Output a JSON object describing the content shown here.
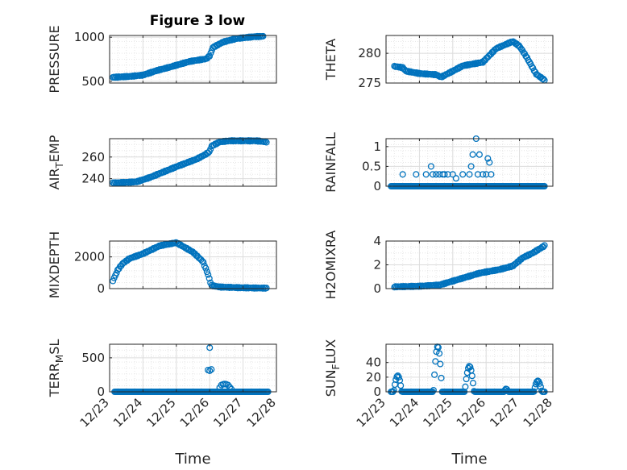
{
  "figure_title": "Figure 3 low",
  "colors": {
    "marker": "#0072BD",
    "axes": "#262626",
    "grid": "#dcdcdc"
  },
  "chart_data": [
    {
      "type": "scatter",
      "title": "Figure 3 low",
      "xlabel": "",
      "ylabel": "PRESSURE",
      "xlim": [
        0,
        5
      ],
      "ylim": [
        480,
        1020
      ],
      "yticks": [
        500,
        1000
      ],
      "ytick_labels": [
        "500",
        "1000"
      ],
      "xticks": [
        0,
        1,
        2,
        3,
        4,
        5
      ],
      "xtick_labels": [],
      "grid": true,
      "anchors": [
        [
          0.1,
          545
        ],
        [
          0.6,
          555
        ],
        [
          1.0,
          570
        ],
        [
          1.4,
          620
        ],
        [
          1.8,
          660
        ],
        [
          2.4,
          725
        ],
        [
          2.9,
          755
        ],
        [
          3.0,
          790
        ],
        [
          3.1,
          885
        ],
        [
          3.4,
          945
        ],
        [
          3.8,
          985
        ],
        [
          4.3,
          1005
        ],
        [
          4.6,
          1010
        ]
      ]
    },
    {
      "type": "scatter",
      "title": "",
      "xlabel": "",
      "ylabel": "THETA",
      "xlim": [
        0,
        5
      ],
      "ylim": [
        275,
        283
      ],
      "yticks": [
        275,
        280
      ],
      "ytick_labels": [
        "275",
        "280"
      ],
      "xticks": [
        0,
        1,
        2,
        3,
        4,
        5
      ],
      "xtick_labels": [],
      "grid": true,
      "anchors": [
        [
          0.25,
          277.8
        ],
        [
          0.5,
          277.6
        ],
        [
          0.6,
          277.0
        ],
        [
          1.0,
          276.6
        ],
        [
          1.5,
          276.4
        ],
        [
          1.65,
          276.0
        ],
        [
          2.0,
          277.0
        ],
        [
          2.3,
          277.9
        ],
        [
          2.9,
          278.5
        ],
        [
          3.3,
          280.8
        ],
        [
          3.8,
          282.0
        ],
        [
          4.0,
          281.2
        ],
        [
          4.2,
          279.5
        ],
        [
          4.5,
          276.5
        ],
        [
          4.75,
          275.5
        ]
      ]
    },
    {
      "type": "scatter",
      "title": "",
      "xlabel": "",
      "ylabel": "AIR_TEMP",
      "xlim": [
        0,
        5
      ],
      "ylim": [
        233,
        277
      ],
      "yticks": [
        240,
        260
      ],
      "ytick_labels": [
        "240",
        "260"
      ],
      "xticks": [
        0,
        1,
        2,
        3,
        4,
        5
      ],
      "xtick_labels": [],
      "grid": true,
      "anchors": [
        [
          0.1,
          236
        ],
        [
          0.8,
          237
        ],
        [
          1.2,
          241
        ],
        [
          2.0,
          251
        ],
        [
          2.6,
          258
        ],
        [
          2.85,
          262
        ],
        [
          3.0,
          265
        ],
        [
          3.05,
          270
        ],
        [
          3.3,
          274
        ],
        [
          3.6,
          275
        ],
        [
          4.4,
          275
        ],
        [
          4.7,
          274
        ]
      ]
    },
    {
      "type": "scatter",
      "title": "",
      "xlabel": "",
      "ylabel": "RAINFALL",
      "xlim": [
        0,
        5
      ],
      "ylim": [
        0,
        1.2
      ],
      "yticks": [
        0,
        0.5,
        1
      ],
      "ytick_labels": [
        "0",
        "0.5",
        "1"
      ],
      "xticks": [
        0,
        1,
        2,
        3,
        4,
        5
      ],
      "xtick_labels": [],
      "grid": true,
      "nonzero_points": [
        [
          0.5,
          0.3
        ],
        [
          0.9,
          0.3
        ],
        [
          1.2,
          0.3
        ],
        [
          1.35,
          0.5
        ],
        [
          1.4,
          0.3
        ],
        [
          1.5,
          0.3
        ],
        [
          1.6,
          0.3
        ],
        [
          1.7,
          0.3
        ],
        [
          1.75,
          0.3
        ],
        [
          1.85,
          0.3
        ],
        [
          2.0,
          0.3
        ],
        [
          2.1,
          0.2
        ],
        [
          2.3,
          0.3
        ],
        [
          2.5,
          0.3
        ],
        [
          2.55,
          0.5
        ],
        [
          2.6,
          0.8
        ],
        [
          2.7,
          1.2
        ],
        [
          2.75,
          0.3
        ],
        [
          2.8,
          0.8
        ],
        [
          2.9,
          0.3
        ],
        [
          3.0,
          0.3
        ],
        [
          3.05,
          0.7
        ],
        [
          3.1,
          0.6
        ],
        [
          3.15,
          0.3
        ]
      ]
    },
    {
      "type": "scatter",
      "title": "",
      "xlabel": "",
      "ylabel": "MIXDEPTH",
      "xlim": [
        0,
        5
      ],
      "ylim": [
        0,
        3000
      ],
      "yticks": [
        0,
        2000
      ],
      "ytick_labels": [
        "0",
        "2000"
      ],
      "xticks": [
        0,
        1,
        2,
        3,
        4,
        5
      ],
      "xtick_labels": [],
      "grid": true,
      "anchors": [
        [
          0.1,
          500
        ],
        [
          0.25,
          1200
        ],
        [
          0.4,
          1600
        ],
        [
          0.6,
          1900
        ],
        [
          1.0,
          2200
        ],
        [
          1.5,
          2700
        ],
        [
          2.0,
          2900
        ],
        [
          2.5,
          2300
        ],
        [
          2.8,
          1700
        ],
        [
          2.95,
          900
        ],
        [
          3.05,
          200
        ],
        [
          3.3,
          100
        ],
        [
          4.0,
          50
        ],
        [
          4.7,
          30
        ]
      ]
    },
    {
      "type": "scatter",
      "title": "",
      "xlabel": "",
      "ylabel": "H2OMIXRA",
      "xlim": [
        0,
        5
      ],
      "ylim": [
        0,
        4
      ],
      "yticks": [
        0,
        2,
        4
      ],
      "ytick_labels": [
        "0",
        "2",
        "4"
      ],
      "xticks": [
        0,
        1,
        2,
        3,
        4,
        5
      ],
      "xtick_labels": [],
      "grid": true,
      "anchors": [
        [
          0.25,
          0.15
        ],
        [
          1.0,
          0.2
        ],
        [
          1.6,
          0.3
        ],
        [
          2.2,
          0.8
        ],
        [
          2.8,
          1.3
        ],
        [
          3.4,
          1.6
        ],
        [
          3.8,
          1.9
        ],
        [
          4.1,
          2.6
        ],
        [
          4.4,
          3.0
        ],
        [
          4.75,
          3.6
        ]
      ]
    },
    {
      "type": "scatter",
      "title": "",
      "xlabel": "Time",
      "ylabel": "TERR_MSL",
      "xlim": [
        0,
        5
      ],
      "ylim": [
        0,
        700
      ],
      "yticks": [
        0,
        500
      ],
      "ytick_labels": [
        "0",
        "500"
      ],
      "xticks": [
        0,
        1,
        2,
        3,
        4,
        5
      ],
      "xtick_labels": [
        "12/23",
        "12/24",
        "12/25",
        "12/26",
        "12/27",
        "12/28"
      ],
      "grid": true,
      "nonzero_points": [
        [
          3.0,
          650
        ],
        [
          2.95,
          320
        ],
        [
          3.0,
          310
        ],
        [
          3.05,
          330
        ],
        [
          3.3,
          60
        ],
        [
          3.35,
          100
        ],
        [
          3.4,
          110
        ],
        [
          3.45,
          115
        ],
        [
          3.5,
          110
        ],
        [
          3.55,
          100
        ],
        [
          3.6,
          70
        ],
        [
          3.65,
          40
        ]
      ]
    },
    {
      "type": "scatter",
      "title": "",
      "xlabel": "Time",
      "ylabel": "SUN_FLUX",
      "xlim": [
        0,
        5
      ],
      "ylim": [
        0,
        65
      ],
      "yticks": [
        0,
        20,
        40
      ],
      "ytick_labels": [
        "0",
        "20",
        "40"
      ],
      "xticks": [
        0,
        1,
        2,
        3,
        4,
        5
      ],
      "xtick_labels": [
        "12/23",
        "12/24",
        "12/25",
        "12/26",
        "12/27",
        "12/28"
      ],
      "grid": true,
      "humps": [
        [
          0.35,
          22,
          0.12
        ],
        [
          1.55,
          62,
          0.13
        ],
        [
          2.5,
          35,
          0.14
        ],
        [
          3.6,
          4,
          0.06
        ],
        [
          4.55,
          15,
          0.12
        ]
      ]
    }
  ]
}
